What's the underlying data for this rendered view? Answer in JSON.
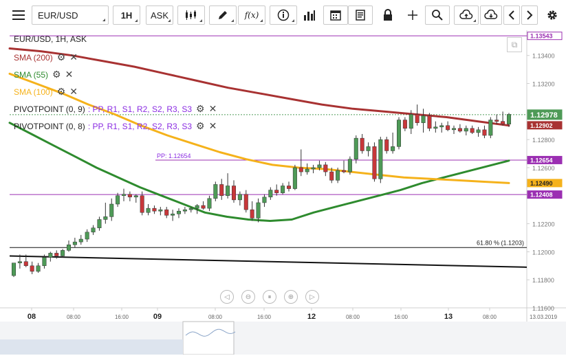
{
  "toolbar": {
    "symbol": "EUR/USD",
    "timeframe": "1H",
    "price_type": "ASK"
  },
  "header": {
    "title": "EUR/USD, 1H, ASK"
  },
  "indicators": [
    {
      "label": "SMA (200)",
      "color": "#a83232"
    },
    {
      "label": "SMA (55)",
      "color": "#2e8b2e"
    },
    {
      "label": "SMA (100)",
      "color": "#f5b21b"
    }
  ],
  "pivots": [
    {
      "label": "PIVOTPOINT (0, 9)",
      "params": ": PP, R1, S1, R2, S2, R3, S3"
    },
    {
      "label": "PIVOTPOINT (0, 8)",
      "params": ": PP, R1, S1, R2, S2, R3, S3"
    }
  ],
  "colors": {
    "candle_up": "#4e9a57",
    "candle_down": "#c8373a",
    "pivot_line": "#9b2fb2",
    "fib_line": "#111111",
    "pivot_text": "#8a2be2",
    "sma200": "#a83232",
    "sma55": "#2e8b2e",
    "sma100": "#f5b21b"
  },
  "chart_data": {
    "type": "candlestick",
    "symbol": "EUR/USD",
    "timeframe": "1H",
    "ylim": [
      1.116,
      1.1358
    ],
    "y_ticks": [
      "1.13400",
      "1.13200",
      "1.12800",
      "1.12600",
      "1.12200",
      "1.12000",
      "1.11800",
      "1.11600"
    ],
    "x_ticks": [
      "08",
      "08:00",
      "16:00",
      "09",
      "08:00",
      "16:00",
      "12",
      "08:00",
      "16:00",
      "13",
      "08:00"
    ],
    "x_end_label": "13.03.2019",
    "price_labels": {
      "top": "1.13543",
      "current": "1.12978",
      "sma200": "1.12902",
      "pp": "1.12654",
      "sma100": "1.12490",
      "pivot_old": "1.12408"
    },
    "annotations": {
      "pp_label": "PP: 1.12654",
      "fib_label": "61.80 % (1.1203)"
    },
    "levels": {
      "pp": 1.12654,
      "pivot_old": 1.12408,
      "top": 1.1354,
      "fib": 1.1203,
      "current": 1.12978
    },
    "fib_trendline": [
      1.1197,
      1.1189
    ],
    "candles": [
      {
        "o": 1.1183,
        "h": 1.1192,
        "l": 1.1182,
        "c": 1.1192
      },
      {
        "o": 1.1192,
        "h": 1.1198,
        "l": 1.1188,
        "c": 1.1193
      },
      {
        "o": 1.1193,
        "h": 1.1198,
        "l": 1.1189,
        "c": 1.119
      },
      {
        "o": 1.119,
        "h": 1.1193,
        "l": 1.1184,
        "c": 1.1186
      },
      {
        "o": 1.1186,
        "h": 1.1192,
        "l": 1.1185,
        "c": 1.119
      },
      {
        "o": 1.119,
        "h": 1.1198,
        "l": 1.1188,
        "c": 1.1196
      },
      {
        "o": 1.1196,
        "h": 1.12,
        "l": 1.1193,
        "c": 1.1199
      },
      {
        "o": 1.1199,
        "h": 1.1201,
        "l": 1.1195,
        "c": 1.1197
      },
      {
        "o": 1.1197,
        "h": 1.1202,
        "l": 1.1196,
        "c": 1.1201
      },
      {
        "o": 1.1201,
        "h": 1.1208,
        "l": 1.12,
        "c": 1.1205
      },
      {
        "o": 1.1205,
        "h": 1.121,
        "l": 1.1203,
        "c": 1.1207
      },
      {
        "o": 1.1207,
        "h": 1.1212,
        "l": 1.1205,
        "c": 1.1209
      },
      {
        "o": 1.1209,
        "h": 1.1216,
        "l": 1.1207,
        "c": 1.1214
      },
      {
        "o": 1.1214,
        "h": 1.1219,
        "l": 1.1212,
        "c": 1.1217
      },
      {
        "o": 1.1217,
        "h": 1.1225,
        "l": 1.1215,
        "c": 1.1223
      },
      {
        "o": 1.1223,
        "h": 1.1235,
        "l": 1.122,
        "c": 1.1225
      },
      {
        "o": 1.1225,
        "h": 1.1238,
        "l": 1.1222,
        "c": 1.1234
      },
      {
        "o": 1.1234,
        "h": 1.1242,
        "l": 1.1232,
        "c": 1.124
      },
      {
        "o": 1.124,
        "h": 1.1245,
        "l": 1.1236,
        "c": 1.1241
      },
      {
        "o": 1.1241,
        "h": 1.1243,
        "l": 1.1236,
        "c": 1.1239
      },
      {
        "o": 1.1239,
        "h": 1.1241,
        "l": 1.1235,
        "c": 1.124
      },
      {
        "o": 1.124,
        "h": 1.1243,
        "l": 1.1226,
        "c": 1.1228
      },
      {
        "o": 1.1228,
        "h": 1.1234,
        "l": 1.1226,
        "c": 1.1231
      },
      {
        "o": 1.1231,
        "h": 1.1233,
        "l": 1.1227,
        "c": 1.1229
      },
      {
        "o": 1.1229,
        "h": 1.1232,
        "l": 1.1226,
        "c": 1.123
      },
      {
        "o": 1.123,
        "h": 1.1232,
        "l": 1.1224,
        "c": 1.1226
      },
      {
        "o": 1.1226,
        "h": 1.123,
        "l": 1.1222,
        "c": 1.1227
      },
      {
        "o": 1.1227,
        "h": 1.1231,
        "l": 1.1224,
        "c": 1.1229
      },
      {
        "o": 1.1229,
        "h": 1.1232,
        "l": 1.1227,
        "c": 1.123
      },
      {
        "o": 1.123,
        "h": 1.1232,
        "l": 1.1228,
        "c": 1.1231
      },
      {
        "o": 1.1231,
        "h": 1.1234,
        "l": 1.1227,
        "c": 1.1233
      },
      {
        "o": 1.1233,
        "h": 1.1236,
        "l": 1.123,
        "c": 1.1231
      },
      {
        "o": 1.1231,
        "h": 1.124,
        "l": 1.1229,
        "c": 1.1238
      },
      {
        "o": 1.1238,
        "h": 1.125,
        "l": 1.1236,
        "c": 1.1248
      },
      {
        "o": 1.1248,
        "h": 1.1252,
        "l": 1.1237,
        "c": 1.124
      },
      {
        "o": 1.124,
        "h": 1.1256,
        "l": 1.1238,
        "c": 1.1247
      },
      {
        "o": 1.1247,
        "h": 1.1251,
        "l": 1.1235,
        "c": 1.1237
      },
      {
        "o": 1.1237,
        "h": 1.1243,
        "l": 1.1233,
        "c": 1.1241
      },
      {
        "o": 1.1241,
        "h": 1.1244,
        "l": 1.1228,
        "c": 1.123
      },
      {
        "o": 1.123,
        "h": 1.1236,
        "l": 1.1222,
        "c": 1.1224
      },
      {
        "o": 1.1224,
        "h": 1.1238,
        "l": 1.1221,
        "c": 1.1235
      },
      {
        "o": 1.1235,
        "h": 1.1241,
        "l": 1.1232,
        "c": 1.1239
      },
      {
        "o": 1.1239,
        "h": 1.1246,
        "l": 1.1237,
        "c": 1.1244
      },
      {
        "o": 1.1244,
        "h": 1.1248,
        "l": 1.124,
        "c": 1.1242
      },
      {
        "o": 1.1242,
        "h": 1.1249,
        "l": 1.1241,
        "c": 1.1247
      },
      {
        "o": 1.1247,
        "h": 1.125,
        "l": 1.1243,
        "c": 1.1245
      },
      {
        "o": 1.1245,
        "h": 1.1262,
        "l": 1.1244,
        "c": 1.126
      },
      {
        "o": 1.126,
        "h": 1.1273,
        "l": 1.1254,
        "c": 1.1257
      },
      {
        "o": 1.1257,
        "h": 1.1263,
        "l": 1.1255,
        "c": 1.1259
      },
      {
        "o": 1.1259,
        "h": 1.1262,
        "l": 1.1256,
        "c": 1.126
      },
      {
        "o": 1.126,
        "h": 1.1265,
        "l": 1.1258,
        "c": 1.1262
      },
      {
        "o": 1.1262,
        "h": 1.1264,
        "l": 1.1254,
        "c": 1.1257
      },
      {
        "o": 1.1257,
        "h": 1.126,
        "l": 1.1249,
        "c": 1.1251
      },
      {
        "o": 1.1251,
        "h": 1.126,
        "l": 1.1249,
        "c": 1.1258
      },
      {
        "o": 1.1258,
        "h": 1.1265,
        "l": 1.1256,
        "c": 1.1257
      },
      {
        "o": 1.1257,
        "h": 1.1268,
        "l": 1.1255,
        "c": 1.1266
      },
      {
        "o": 1.1266,
        "h": 1.1283,
        "l": 1.1263,
        "c": 1.1281
      },
      {
        "o": 1.1281,
        "h": 1.1284,
        "l": 1.127,
        "c": 1.1272
      },
      {
        "o": 1.1272,
        "h": 1.1278,
        "l": 1.1268,
        "c": 1.1275
      },
      {
        "o": 1.1275,
        "h": 1.1278,
        "l": 1.125,
        "c": 1.1252
      },
      {
        "o": 1.1252,
        "h": 1.1282,
        "l": 1.1249,
        "c": 1.128
      },
      {
        "o": 1.128,
        "h": 1.1282,
        "l": 1.127,
        "c": 1.1272
      },
      {
        "o": 1.1272,
        "h": 1.1285,
        "l": 1.127,
        "c": 1.1275
      },
      {
        "o": 1.1275,
        "h": 1.1296,
        "l": 1.1273,
        "c": 1.1294
      },
      {
        "o": 1.1294,
        "h": 1.1296,
        "l": 1.1286,
        "c": 1.1288
      },
      {
        "o": 1.1288,
        "h": 1.1301,
        "l": 1.1284,
        "c": 1.1298
      },
      {
        "o": 1.1298,
        "h": 1.1305,
        "l": 1.129,
        "c": 1.1292
      },
      {
        "o": 1.1292,
        "h": 1.1302,
        "l": 1.1285,
        "c": 1.1297
      },
      {
        "o": 1.1297,
        "h": 1.1299,
        "l": 1.1286,
        "c": 1.1288
      },
      {
        "o": 1.1288,
        "h": 1.1293,
        "l": 1.1285,
        "c": 1.1289
      },
      {
        "o": 1.1289,
        "h": 1.1292,
        "l": 1.1285,
        "c": 1.129
      },
      {
        "o": 1.129,
        "h": 1.1293,
        "l": 1.1286,
        "c": 1.1287
      },
      {
        "o": 1.1287,
        "h": 1.129,
        "l": 1.1284,
        "c": 1.1288
      },
      {
        "o": 1.1288,
        "h": 1.1291,
        "l": 1.1285,
        "c": 1.1286
      },
      {
        "o": 1.1286,
        "h": 1.129,
        "l": 1.1283,
        "c": 1.1288
      },
      {
        "o": 1.1288,
        "h": 1.129,
        "l": 1.1284,
        "c": 1.1285
      },
      {
        "o": 1.1285,
        "h": 1.1289,
        "l": 1.1282,
        "c": 1.1287
      },
      {
        "o": 1.1287,
        "h": 1.129,
        "l": 1.1281,
        "c": 1.1283
      },
      {
        "o": 1.1283,
        "h": 1.1296,
        "l": 1.1281,
        "c": 1.1294
      },
      {
        "o": 1.1294,
        "h": 1.1298,
        "l": 1.1291,
        "c": 1.1293
      },
      {
        "o": 1.1293,
        "h": 1.13,
        "l": 1.129,
        "c": 1.1291
      },
      {
        "o": 1.1291,
        "h": 1.1299,
        "l": 1.1289,
        "c": 1.1298
      }
    ],
    "sma200": [
      1.1345,
      1.1343,
      1.134,
      1.1336,
      1.1332,
      1.1327,
      1.1322,
      1.1317,
      1.1313,
      1.1309,
      1.1305,
      1.1302,
      1.13,
      1.1298,
      1.1296,
      1.1293,
      1.129
    ],
    "sma55": [
      1.1292,
      1.1284,
      1.1276,
      1.1268,
      1.126,
      1.1253,
      1.1246,
      1.124,
      1.1234,
      1.1228,
      1.1225,
      1.1223,
      1.1222,
      1.1223,
      1.1228,
      1.1232,
      1.1236,
      1.124,
      1.1244,
      1.1249,
      1.1253,
      1.1257,
      1.1261,
      1.1265
    ],
    "sma100": [
      1.1327,
      1.132,
      1.1313,
      1.1305,
      1.1298,
      1.129,
      1.1283,
      1.1277,
      1.1271,
      1.1266,
      1.1262,
      1.126,
      1.1259,
      1.1257,
      1.1255,
      1.1253,
      1.1252,
      1.1251,
      1.125,
      1.1249
    ]
  }
}
